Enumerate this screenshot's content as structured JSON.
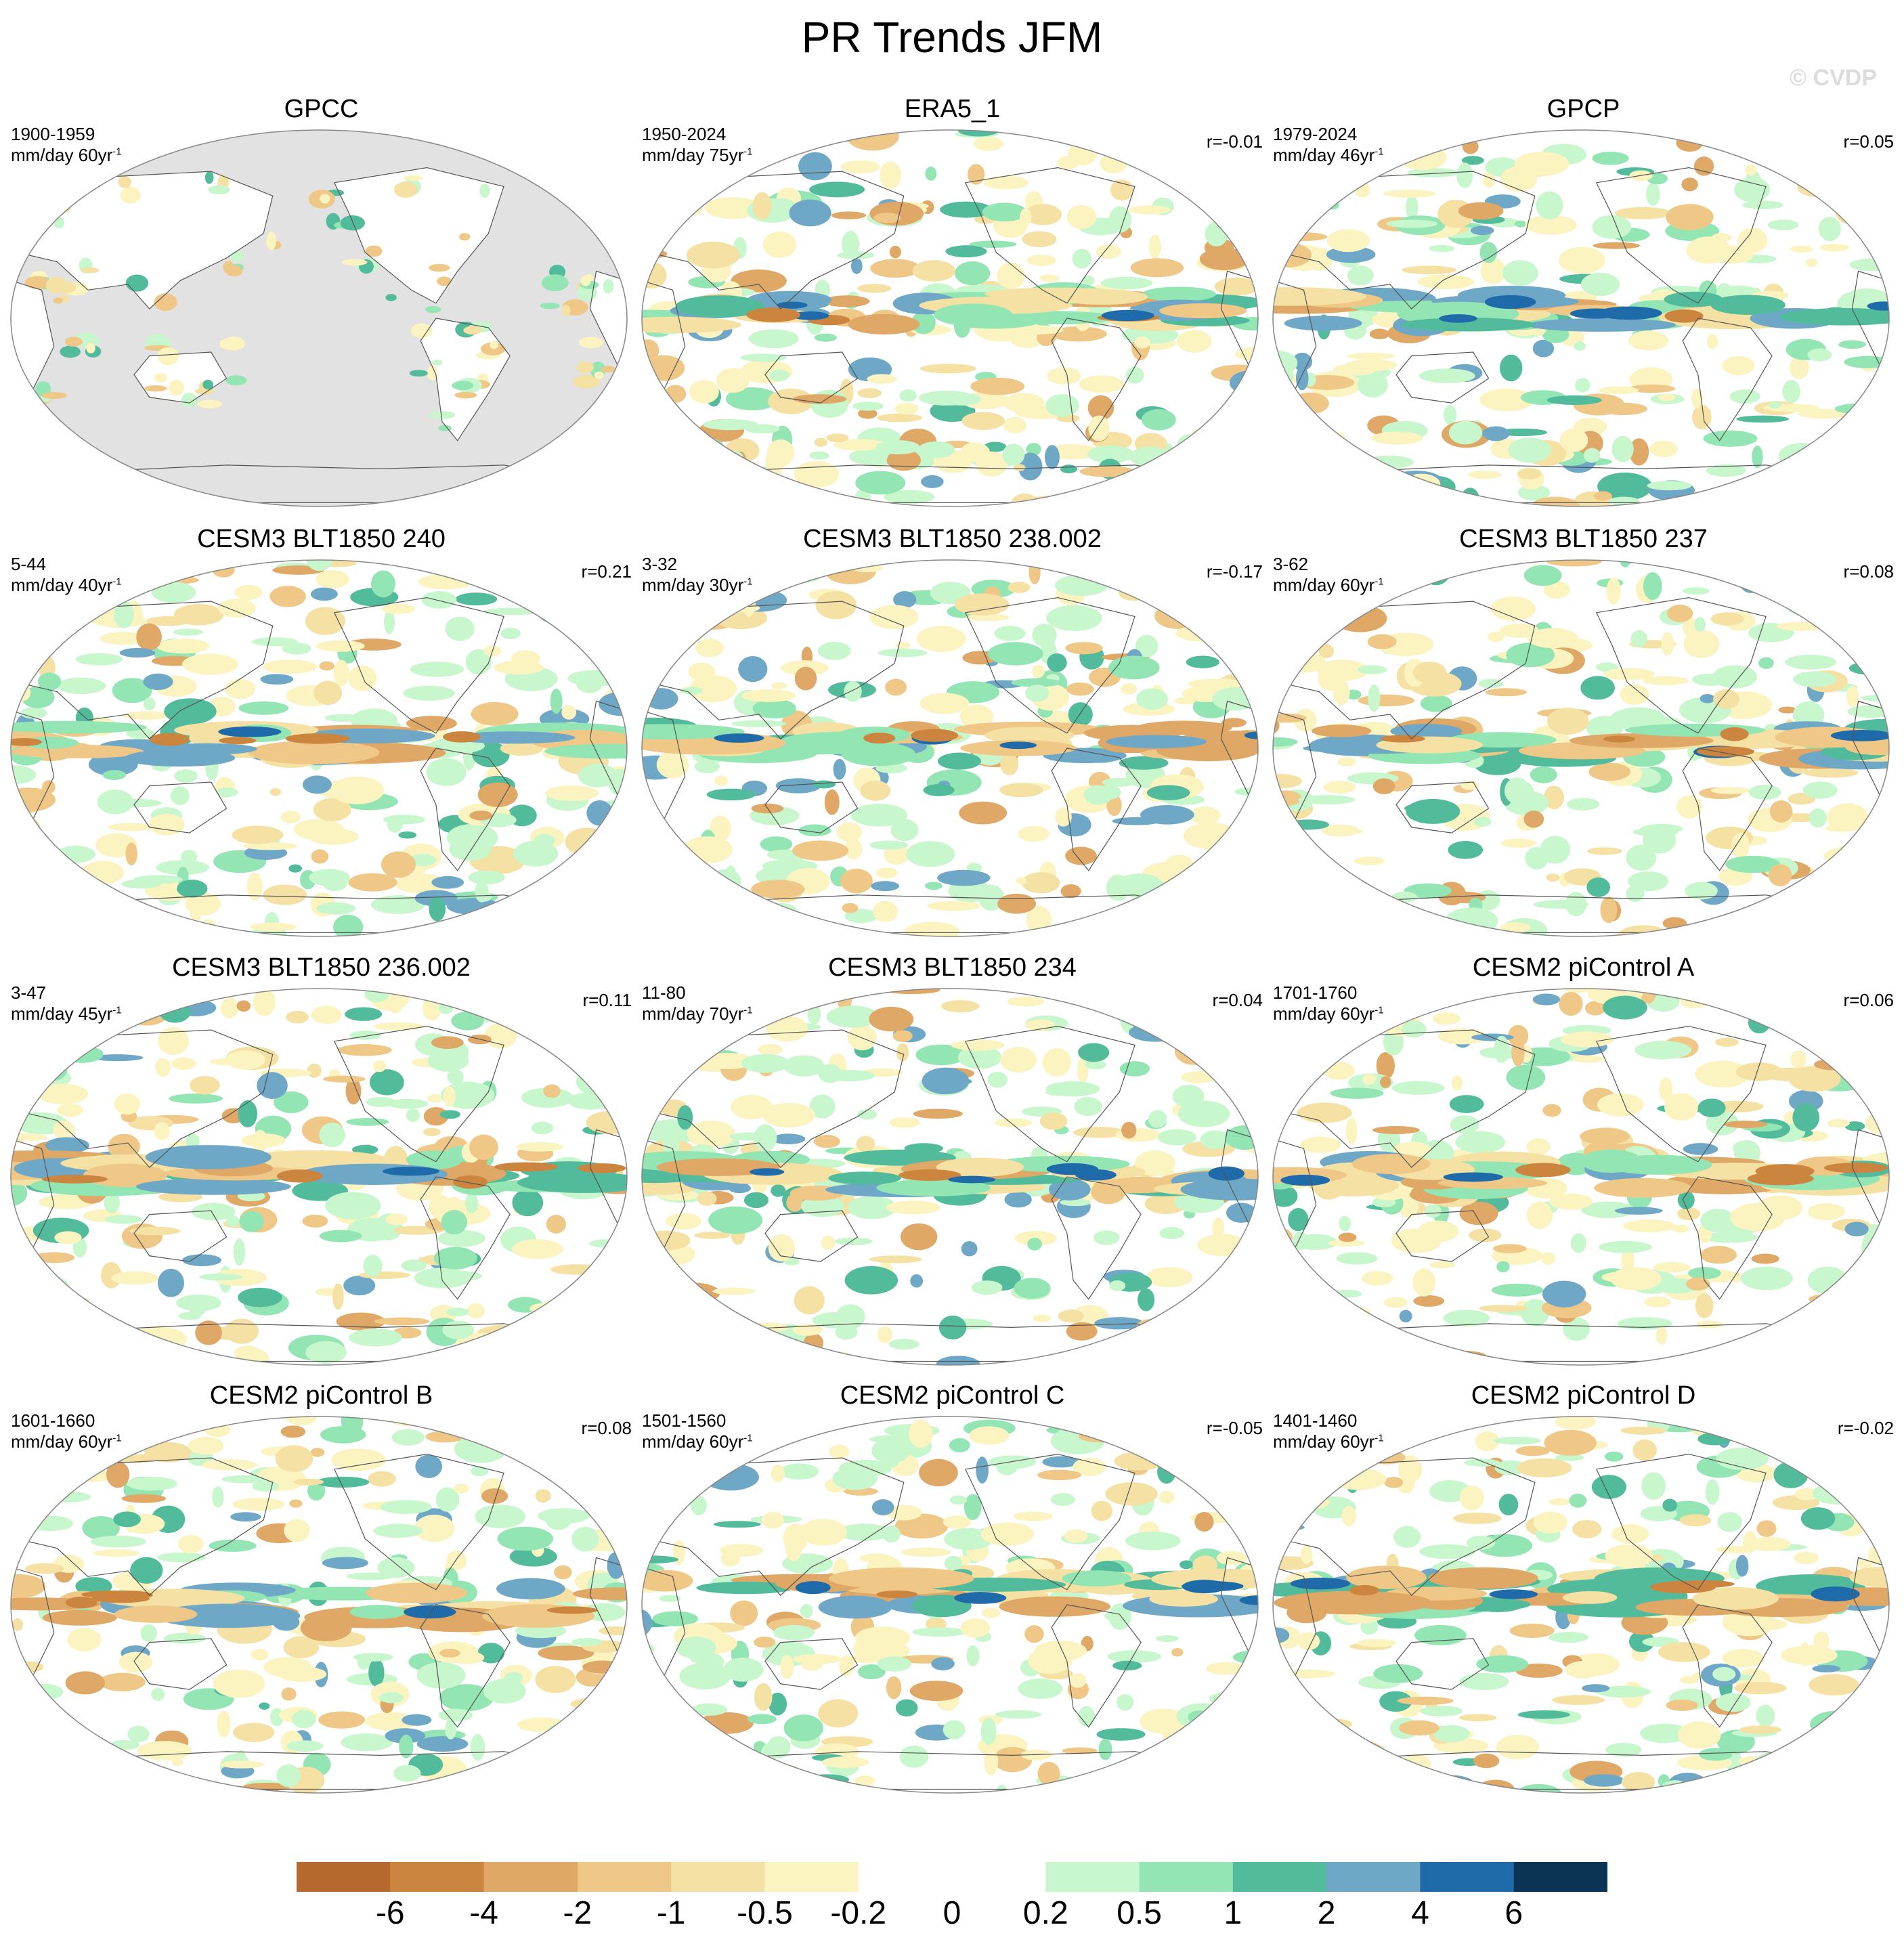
{
  "title": "PR Trends JFM",
  "watermark": "© CVDP",
  "panels": [
    {
      "title": "GPCC",
      "period": "1900-1959",
      "units": "mm/day 60yr",
      "units_exp": "-1",
      "corr": "",
      "land_mask": true,
      "pattern": "gpcc"
    },
    {
      "title": "ERA5_1",
      "period": "1950-2024",
      "units": "mm/day 75yr",
      "units_exp": "-1",
      "corr": "r=-0.01",
      "land_mask": false,
      "pattern": "era5"
    },
    {
      "title": "GPCP",
      "period": "1979-2024",
      "units": "mm/day 46yr",
      "units_exp": "-1",
      "corr": "r=0.05",
      "land_mask": false,
      "pattern": "gpcp"
    },
    {
      "title": "CESM3 BLT1850 240",
      "period": "5-44",
      "units": "mm/day 40yr",
      "units_exp": "-1",
      "corr": "r=0.21",
      "land_mask": false,
      "pattern": "m240"
    },
    {
      "title": "CESM3 BLT1850 238.002",
      "period": "3-32",
      "units": "mm/day 30yr",
      "units_exp": "-1",
      "corr": "r=-0.17",
      "land_mask": false,
      "pattern": "m238"
    },
    {
      "title": "CESM3 BLT1850 237",
      "period": "3-62",
      "units": "mm/day 60yr",
      "units_exp": "-1",
      "corr": "r=0.08",
      "land_mask": false,
      "pattern": "m237"
    },
    {
      "title": "CESM3 BLT1850 236.002",
      "period": "3-47",
      "units": "mm/day 45yr",
      "units_exp": "-1",
      "corr": "r=0.11",
      "land_mask": false,
      "pattern": "m236"
    },
    {
      "title": "CESM3 BLT1850 234",
      "period": "11-80",
      "units": "mm/day 70yr",
      "units_exp": "-1",
      "corr": "r=0.04",
      "land_mask": false,
      "pattern": "m234"
    },
    {
      "title": "CESM2 piControl A",
      "period": "1701-1760",
      "units": "mm/day 60yr",
      "units_exp": "-1",
      "corr": "r=0.06",
      "land_mask": false,
      "pattern": "pa"
    },
    {
      "title": "CESM2 piControl B",
      "period": "1601-1660",
      "units": "mm/day 60yr",
      "units_exp": "-1",
      "corr": "r=0.08",
      "land_mask": false,
      "pattern": "pb"
    },
    {
      "title": "CESM2 piControl C",
      "period": "1501-1560",
      "units": "mm/day 60yr",
      "units_exp": "-1",
      "corr": "r=-0.05",
      "land_mask": false,
      "pattern": "pc"
    },
    {
      "title": "CESM2 piControl D",
      "period": "1401-1460",
      "units": "mm/day 60yr",
      "units_exp": "-1",
      "corr": "r=-0.02",
      "land_mask": false,
      "pattern": "pd"
    }
  ],
  "colorbar": {
    "colors": [
      "#b5692e",
      "#cc853f",
      "#dfa866",
      "#efc888",
      "#f5e1a3",
      "#fbf4c1",
      "#ffffff",
      "#ffffff",
      "#c8f6cd",
      "#93e6b4",
      "#52bb9b",
      "#6fa8c7",
      "#1f6aa8",
      "#0b3355"
    ],
    "labels": [
      "-6",
      "-4",
      "-2",
      "-1",
      "-0.5",
      "-0.2",
      "0",
      "0.2",
      "0.5",
      "1",
      "2",
      "4",
      "6"
    ]
  }
}
